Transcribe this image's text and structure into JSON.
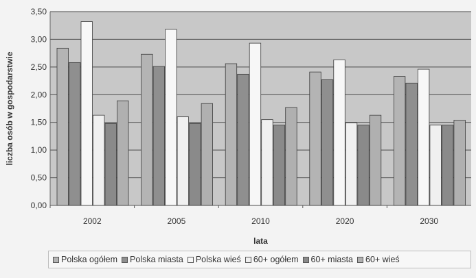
{
  "chart_data": {
    "type": "bar",
    "xlabel": "lata",
    "ylabel": "liczba osób w gospodarstwie",
    "ylim": [
      0,
      3.5
    ],
    "yticks": [
      "0,00",
      "0,50",
      "1,00",
      "1,50",
      "2,00",
      "2,50",
      "3,00",
      "3,50"
    ],
    "categories": [
      "2002",
      "2005",
      "2010",
      "2020",
      "2030"
    ],
    "grid": true,
    "legend_position": "bottom",
    "series": [
      {
        "name": "Polska ogółem",
        "color": "#b4b4b4",
        "values": [
          2.84,
          2.73,
          2.56,
          2.41,
          2.33
        ]
      },
      {
        "name": "Polska miasta",
        "color": "#8f8f8f",
        "values": [
          2.58,
          2.51,
          2.37,
          2.27,
          2.21
        ]
      },
      {
        "name": "Polska wieś",
        "color": "#f7f7f7",
        "values": [
          3.32,
          3.18,
          2.93,
          2.63,
          2.46
        ]
      },
      {
        "name": "60+ ogółem",
        "color": "#f0f0f0",
        "values": [
          1.63,
          1.6,
          1.55,
          1.49,
          1.45
        ]
      },
      {
        "name": "60+ miasta",
        "color": "#8a8a8a",
        "values": [
          1.48,
          1.48,
          1.45,
          1.45,
          1.45
        ]
      },
      {
        "name": "60+ wieś",
        "color": "#b0b0b0",
        "values": [
          1.89,
          1.84,
          1.77,
          1.63,
          1.54
        ]
      }
    ]
  }
}
